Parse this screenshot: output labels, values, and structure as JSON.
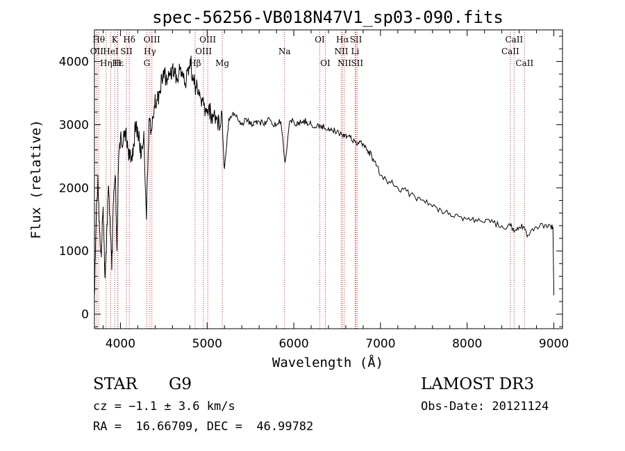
{
  "chart_data": {
    "type": "line",
    "title": "spec-56256-VB018N47V1_sp03-090.fits",
    "xlabel": "Wavelength (Å)",
    "ylabel": "Flux (relative)",
    "xlim": [
      3700,
      9100
    ],
    "ylim": [
      -230,
      4500
    ],
    "x_ticks": [
      4000,
      5000,
      6000,
      7000,
      8000,
      9000
    ],
    "y_ticks": [
      0,
      1000,
      2000,
      3000,
      4000
    ],
    "grid": false,
    "series": [
      {
        "name": "spectrum",
        "color": "#000000",
        "x": [
          3700,
          3720,
          3740,
          3760,
          3780,
          3800,
          3820,
          3840,
          3860,
          3880,
          3900,
          3920,
          3940,
          3960,
          3980,
          4000,
          4030,
          4060,
          4090,
          4120,
          4150,
          4180,
          4210,
          4240,
          4270,
          4300,
          4330,
          4360,
          4390,
          4420,
          4450,
          4480,
          4510,
          4540,
          4570,
          4600,
          4630,
          4660,
          4690,
          4720,
          4750,
          4780,
          4810,
          4840,
          4870,
          4900,
          4930,
          4960,
          4990,
          5020,
          5050,
          5080,
          5110,
          5140,
          5170,
          5200,
          5250,
          5300,
          5350,
          5400,
          5450,
          5500,
          5550,
          5600,
          5650,
          5700,
          5750,
          5800,
          5850,
          5900,
          5950,
          6000,
          6050,
          6100,
          6150,
          6200,
          6250,
          6300,
          6350,
          6400,
          6450,
          6500,
          6550,
          6600,
          6650,
          6700,
          6750,
          6800,
          6850,
          6900,
          6950,
          7000,
          7100,
          7200,
          7300,
          7400,
          7500,
          7600,
          7700,
          7800,
          7900,
          8000,
          8100,
          8200,
          8300,
          8400,
          8500,
          8540,
          8600,
          8660,
          8700,
          8800,
          8900,
          8960,
          8990,
          9000
        ],
        "y": [
          300,
          1500,
          2200,
          1300,
          900,
          1700,
          600,
          1200,
          2000,
          1500,
          700,
          1800,
          2200,
          1000,
          2500,
          2800,
          2700,
          2900,
          2600,
          2400,
          2700,
          3000,
          2800,
          2500,
          2900,
          1500,
          3100,
          2900,
          3300,
          3400,
          3500,
          3700,
          3800,
          3700,
          3800,
          3900,
          3800,
          3700,
          3900,
          3800,
          3600,
          3900,
          4000,
          3700,
          3600,
          3500,
          3400,
          3300,
          3200,
          3300,
          3100,
          3200,
          3100,
          3000,
          3200,
          2300,
          3100,
          3200,
          3100,
          3000,
          3100,
          3000,
          3050,
          3050,
          3000,
          3100,
          3000,
          3000,
          3050,
          2400,
          3050,
          3050,
          3000,
          3050,
          3050,
          3000,
          2950,
          3000,
          2950,
          2950,
          2900,
          2900,
          2850,
          2850,
          2800,
          2750,
          2700,
          2700,
          2600,
          2500,
          2350,
          2200,
          2100,
          2000,
          1950,
          1850,
          1800,
          1700,
          1650,
          1600,
          1550,
          1500,
          1500,
          1450,
          1450,
          1400,
          1400,
          1300,
          1380,
          1380,
          1250,
          1380,
          1420,
          1400,
          1380,
          300
        ]
      }
    ],
    "spectral_lines": [
      {
        "label": "Hθ",
        "x": 3750,
        "row": 1
      },
      {
        "label": "OII",
        "x": 3727,
        "row": 2
      },
      {
        "label": "Hη",
        "x": 3835,
        "row": 3
      },
      {
        "label": "K",
        "x": 3934,
        "row": 1
      },
      {
        "label": "HeI",
        "x": 3889,
        "row": 2
      },
      {
        "label": "Hε",
        "x": 3970,
        "row": 3
      },
      {
        "label": "Hδ",
        "x": 4102,
        "row": 1
      },
      {
        "label": "SII",
        "x": 4069,
        "row": 2
      },
      {
        "label": "H",
        "x": 3968,
        "row": 3
      },
      {
        "label": "OIII",
        "x": 4363,
        "row": 1
      },
      {
        "label": "Hγ",
        "x": 4340,
        "row": 2
      },
      {
        "label": "G",
        "x": 4305,
        "row": 3
      },
      {
        "label": "OIII",
        "x": 5007,
        "row": 1
      },
      {
        "label": "OIII",
        "x": 4959,
        "row": 2
      },
      {
        "label": "Hβ",
        "x": 4861,
        "row": 3
      },
      {
        "label": "Mg",
        "x": 5175,
        "row": 3
      },
      {
        "label": "Na",
        "x": 5893,
        "row": 2
      },
      {
        "label": "OI",
        "x": 6300,
        "row": 1
      },
      {
        "label": "OI",
        "x": 6364,
        "row": 3
      },
      {
        "label": "Hα",
        "x": 6563,
        "row": 1
      },
      {
        "label": "NII",
        "x": 6548,
        "row": 2
      },
      {
        "label": "NII",
        "x": 6584,
        "row": 3
      },
      {
        "label": "SII",
        "x": 6717,
        "row": 1
      },
      {
        "label": "Li",
        "x": 6708,
        "row": 2
      },
      {
        "label": "SII",
        "x": 6731,
        "row": 3
      },
      {
        "label": "CaII",
        "x": 8542,
        "row": 1
      },
      {
        "label": "CaII",
        "x": 8498,
        "row": 2
      },
      {
        "label": "CaII",
        "x": 8662,
        "row": 3
      }
    ]
  },
  "info": {
    "object_class": "STAR",
    "subclass": "G9",
    "survey": "LAMOST DR3",
    "velocity": "cz = −1.1 ± 3.6 km/s",
    "obs_date": "Obs-Date: 20121124",
    "coords": "RA =  16.66709, DEC =  46.99782"
  },
  "colors": {
    "line_marker": "#cc2222",
    "spectrum": "#000000",
    "axis": "#000000"
  }
}
